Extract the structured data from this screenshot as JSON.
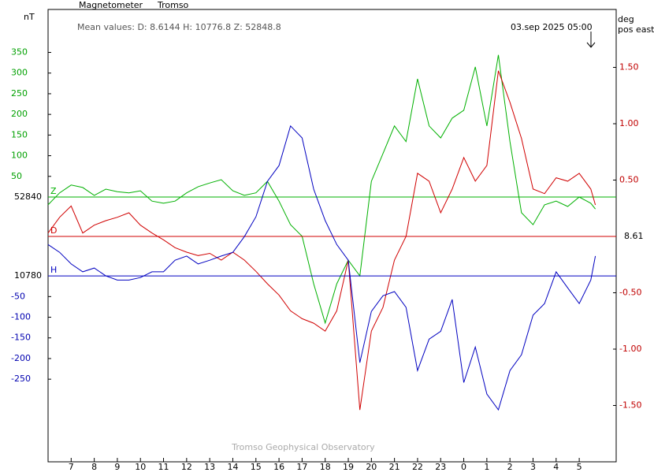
{
  "chart_data": {
    "type": "line",
    "title": "Magnetometer",
    "subtitle": "Tromso",
    "mean_values": "Mean values:  D: 8.6144   H: 10776.8   Z: 52848.8",
    "timestamp": "03.sep 2025 05:00",
    "ylabel": "nT",
    "y2label": "deg",
    "y2label_sub": "pos east",
    "footer": "Tromso Geophysical Observatory",
    "xlim": [
      6,
      30.6
    ],
    "xticks": [
      7,
      8,
      9,
      10,
      11,
      12,
      13,
      14,
      15,
      16,
      17,
      18,
      19,
      20,
      21,
      22,
      23,
      {
        "value": 24,
        "label": "0"
      },
      {
        "value": 25,
        "label": "1"
      },
      {
        "value": 26,
        "label": "2"
      },
      {
        "value": 27,
        "label": "3"
      },
      {
        "value": 28,
        "label": "4"
      },
      {
        "value": 29,
        "label": "5"
      }
    ],
    "ylim": [
      -641,
      454
    ],
    "yticks": [
      50,
      100,
      150,
      200,
      250,
      300,
      350
    ],
    "ytick_color": "#00a000",
    "y3lim": [
      -450,
      645
    ],
    "y3ticks": [
      -50,
      -100,
      -150,
      -200,
      -250
    ],
    "y3tick_color": "#0000b0",
    "y2lim": [
      -2.0,
      2.014
    ],
    "y2ticks": [
      {
        "value": 1.5,
        "label": "1.50"
      },
      {
        "value": 1.0,
        "label": "1.00"
      },
      {
        "value": 0.5,
        "label": "0.50"
      },
      {
        "value": -0.5,
        "label": "-0.50"
      },
      {
        "value": -1.0,
        "label": "-1.00"
      },
      {
        "value": -1.5,
        "label": "-1.50"
      }
    ],
    "y2tick_color": "#c00000",
    "x": [
      6,
      6.5,
      7,
      7.5,
      8,
      8.5,
      9,
      9.5,
      10,
      10.5,
      11,
      11.5,
      12,
      12.5,
      13,
      13.5,
      14,
      14.5,
      15,
      15.5,
      16,
      16.5,
      17,
      17.5,
      18,
      18.5,
      19,
      19.5,
      20,
      20.5,
      21,
      21.5,
      22,
      22.5,
      23,
      23.5,
      24,
      24.5,
      25,
      25.5,
      26,
      26.5,
      27,
      27.5,
      28,
      28.5,
      29,
      29.5,
      29.7
    ],
    "series": [
      {
        "name": "Z",
        "color": "#00b000",
        "axis": "y",
        "baseline_label": "52840",
        "values": [
          -19,
          10,
          29,
          23,
          4,
          19,
          13,
          10,
          15,
          -10,
          -15,
          -10,
          10,
          25,
          34,
          42,
          15,
          4,
          10,
          38,
          -10,
          -67,
          -95,
          -210,
          -305,
          -210,
          -153,
          -191,
          38,
          105,
          172,
          134,
          286,
          172,
          143,
          191,
          210,
          315,
          172,
          344,
          134,
          -38,
          -67,
          -19,
          -10,
          -23,
          0,
          -15,
          -29
        ]
      },
      {
        "name": "D",
        "color": "#d00000",
        "axis": "y2",
        "baseline_label": "8.61",
        "values": [
          0.03,
          0.17,
          0.27,
          0.03,
          0.1,
          0.14,
          0.17,
          0.21,
          0.1,
          0.03,
          -0.03,
          -0.1,
          -0.14,
          -0.17,
          -0.15,
          -0.21,
          -0.14,
          -0.21,
          -0.31,
          -0.42,
          -0.52,
          -0.66,
          -0.73,
          -0.77,
          -0.84,
          -0.66,
          -0.21,
          -1.54,
          -0.84,
          -0.63,
          -0.21,
          0.0,
          0.56,
          0.49,
          0.21,
          0.42,
          0.7,
          0.49,
          0.63,
          1.47,
          1.19,
          0.87,
          0.42,
          0.38,
          0.52,
          0.49,
          0.56,
          0.42,
          0.28
        ]
      },
      {
        "name": "H",
        "color": "#0000c0",
        "axis": "y3",
        "baseline_label": "10780",
        "values": [
          76,
          57,
          29,
          10,
          19,
          0,
          -10,
          -10,
          -4,
          10,
          10,
          38,
          48,
          29,
          38,
          48,
          57,
          95,
          143,
          229,
          267,
          363,
          334,
          210,
          134,
          76,
          38,
          -210,
          -86,
          -48,
          -38,
          -76,
          -229,
          -153,
          -134,
          -57,
          -258,
          -172,
          -286,
          -324,
          -229,
          -191,
          -95,
          -67,
          10,
          -29,
          -67,
          -10,
          48
        ]
      }
    ]
  }
}
